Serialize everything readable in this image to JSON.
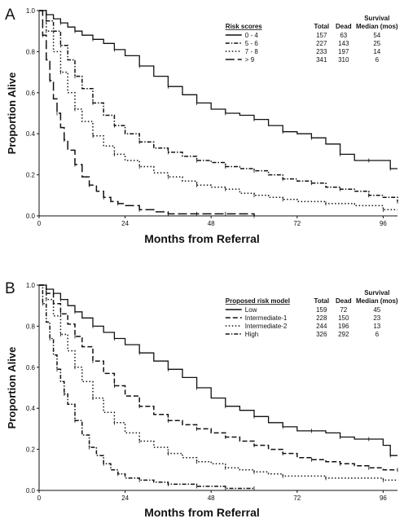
{
  "chart_data": [
    {
      "type": "line",
      "panel_label": "A",
      "xlabel": "Months from Referral",
      "ylabel": "Proportion Alive",
      "xlim": [
        0,
        100
      ],
      "ylim": [
        0,
        1.0
      ],
      "xticks": [
        0,
        24,
        48,
        72,
        96
      ],
      "yticks": [
        0.0,
        0.2,
        0.4,
        0.6,
        0.8,
        1.0
      ],
      "xtick_labels": [
        "0",
        "24",
        "48",
        "72",
        "96"
      ],
      "ytick_labels": [
        "0.0",
        "0.2",
        "0.4",
        "0.6",
        "0.8",
        "1.0"
      ],
      "legend_position": "top-right",
      "legend": {
        "title": "Risk scores",
        "columns": [
          "Total",
          "Dead",
          "Survival Median (mos)"
        ],
        "column_headers_top": [
          "",
          "",
          "Survival"
        ],
        "column_headers_bottom": [
          "Total",
          "Dead",
          "Median (mos)"
        ],
        "rows": [
          {
            "label": "0 - 4",
            "total": "157",
            "dead": "63",
            "median": "54"
          },
          {
            "label": "5 - 6",
            "total": "227",
            "dead": "143",
            "median": "25"
          },
          {
            "label": "7 - 8",
            "total": "233",
            "dead": "197",
            "median": "14"
          },
          {
            "label": "> 9",
            "total": "341",
            "dead": "310",
            "median": "6"
          }
        ]
      },
      "series": [
        {
          "name": "0 - 4",
          "style": "solid",
          "x": [
            0,
            2,
            4,
            6,
            8,
            10,
            12,
            15,
            18,
            21,
            24,
            28,
            32,
            36,
            40,
            44,
            48,
            52,
            56,
            60,
            64,
            68,
            72,
            76,
            80,
            84,
            88,
            92,
            96,
            98,
            100
          ],
          "y": [
            1.0,
            0.98,
            0.96,
            0.94,
            0.92,
            0.9,
            0.88,
            0.86,
            0.84,
            0.81,
            0.78,
            0.73,
            0.68,
            0.63,
            0.59,
            0.55,
            0.52,
            0.5,
            0.49,
            0.47,
            0.44,
            0.41,
            0.4,
            0.38,
            0.35,
            0.3,
            0.27,
            0.27,
            0.27,
            0.23,
            0.23
          ]
        },
        {
          "name": "5 - 6",
          "style": "dash-dot",
          "x": [
            0,
            2,
            4,
            6,
            8,
            10,
            12,
            15,
            18,
            21,
            24,
            28,
            32,
            36,
            40,
            44,
            48,
            52,
            56,
            60,
            64,
            68,
            72,
            76,
            80,
            84,
            88,
            92,
            96,
            100
          ],
          "y": [
            1.0,
            0.95,
            0.9,
            0.83,
            0.76,
            0.68,
            0.62,
            0.55,
            0.49,
            0.44,
            0.4,
            0.36,
            0.33,
            0.31,
            0.29,
            0.27,
            0.26,
            0.24,
            0.23,
            0.22,
            0.2,
            0.18,
            0.17,
            0.16,
            0.14,
            0.13,
            0.12,
            0.1,
            0.09,
            0.07
          ]
        },
        {
          "name": "7 - 8",
          "style": "dotted",
          "x": [
            0,
            2,
            4,
            6,
            8,
            10,
            12,
            15,
            18,
            21,
            24,
            28,
            32,
            36,
            40,
            44,
            48,
            52,
            56,
            60,
            64,
            68,
            72,
            80,
            88,
            96,
            100
          ],
          "y": [
            1.0,
            0.9,
            0.8,
            0.7,
            0.6,
            0.52,
            0.46,
            0.39,
            0.34,
            0.3,
            0.27,
            0.24,
            0.21,
            0.19,
            0.17,
            0.15,
            0.14,
            0.13,
            0.11,
            0.1,
            0.09,
            0.08,
            0.07,
            0.06,
            0.05,
            0.03,
            0.03
          ]
        },
        {
          "name": "> 9",
          "style": "long-dash",
          "x": [
            0,
            1,
            2,
            3,
            4,
            5,
            6,
            7,
            8,
            10,
            12,
            14,
            16,
            18,
            20,
            22,
            24,
            28,
            32,
            36,
            40,
            44,
            48,
            52,
            56,
            60
          ],
          "y": [
            1.0,
            0.88,
            0.76,
            0.66,
            0.57,
            0.5,
            0.43,
            0.37,
            0.32,
            0.25,
            0.19,
            0.15,
            0.12,
            0.09,
            0.07,
            0.06,
            0.05,
            0.03,
            0.02,
            0.01,
            0.01,
            0.01,
            0.01,
            0.01,
            0.01,
            0.0
          ]
        }
      ]
    },
    {
      "type": "line",
      "panel_label": "B",
      "xlabel": "Months from Referral",
      "ylabel": "Proportion Alive",
      "xlim": [
        0,
        100
      ],
      "ylim": [
        0,
        1.0
      ],
      "xticks": [
        0,
        24,
        48,
        72,
        96
      ],
      "yticks": [
        0.0,
        0.2,
        0.4,
        0.6,
        0.8,
        1.0
      ],
      "xtick_labels": [
        "0",
        "24",
        "48",
        "72",
        "96"
      ],
      "ytick_labels": [
        "0.0",
        "0.2",
        "0.4",
        "0.6",
        "0.8",
        "1.0"
      ],
      "legend_position": "top-right",
      "legend": {
        "title": "Proposed risk model",
        "columns": [
          "Total",
          "Dead",
          "Survival Median (mos)"
        ],
        "column_headers_top": [
          "",
          "",
          "Survival"
        ],
        "column_headers_bottom": [
          "Total",
          "Dead",
          "Median (mos)"
        ],
        "rows": [
          {
            "label": "Low",
            "total": "159",
            "dead": "72",
            "median": "45"
          },
          {
            "label": "Intermediate-1",
            "total": "228",
            "dead": "150",
            "median": "23"
          },
          {
            "label": "Intermediate-2",
            "total": "244",
            "dead": "196",
            "median": "13"
          },
          {
            "label": "High",
            "total": "326",
            "dead": "292",
            "median": "6"
          }
        ]
      },
      "series": [
        {
          "name": "Low",
          "style": "solid",
          "x": [
            0,
            2,
            4,
            6,
            8,
            10,
            12,
            15,
            18,
            21,
            24,
            28,
            32,
            36,
            40,
            44,
            48,
            52,
            56,
            60,
            64,
            68,
            72,
            76,
            80,
            84,
            88,
            92,
            96,
            98,
            100
          ],
          "y": [
            1.0,
            0.98,
            0.96,
            0.93,
            0.9,
            0.87,
            0.84,
            0.8,
            0.77,
            0.74,
            0.71,
            0.67,
            0.63,
            0.59,
            0.55,
            0.5,
            0.45,
            0.41,
            0.39,
            0.36,
            0.33,
            0.31,
            0.29,
            0.29,
            0.28,
            0.26,
            0.25,
            0.25,
            0.22,
            0.17,
            0.17
          ]
        },
        {
          "name": "Intermediate-1",
          "style": "dashed",
          "x": [
            0,
            2,
            4,
            6,
            8,
            10,
            12,
            15,
            18,
            21,
            24,
            28,
            32,
            36,
            40,
            44,
            48,
            52,
            56,
            60,
            64,
            68,
            72,
            76,
            80,
            84,
            88,
            92,
            96,
            100
          ],
          "y": [
            1.0,
            0.96,
            0.91,
            0.86,
            0.81,
            0.75,
            0.7,
            0.63,
            0.57,
            0.51,
            0.46,
            0.41,
            0.37,
            0.34,
            0.32,
            0.3,
            0.28,
            0.26,
            0.24,
            0.22,
            0.2,
            0.18,
            0.16,
            0.15,
            0.14,
            0.13,
            0.12,
            0.11,
            0.1,
            0.1
          ]
        },
        {
          "name": "Intermediate-2",
          "style": "dotted",
          "x": [
            0,
            2,
            4,
            6,
            8,
            10,
            12,
            15,
            18,
            21,
            24,
            28,
            32,
            36,
            40,
            44,
            48,
            52,
            56,
            60,
            64,
            68,
            72,
            80,
            88,
            96,
            100
          ],
          "y": [
            1.0,
            0.93,
            0.85,
            0.76,
            0.68,
            0.6,
            0.53,
            0.45,
            0.38,
            0.33,
            0.28,
            0.24,
            0.21,
            0.18,
            0.16,
            0.14,
            0.13,
            0.11,
            0.1,
            0.09,
            0.08,
            0.07,
            0.07,
            0.06,
            0.06,
            0.05,
            0.05
          ]
        },
        {
          "name": "High",
          "style": "dash-dot",
          "x": [
            0,
            1,
            2,
            3,
            4,
            5,
            6,
            7,
            8,
            10,
            12,
            14,
            16,
            18,
            20,
            22,
            24,
            28,
            32,
            36,
            40,
            44,
            48,
            52,
            56,
            60
          ],
          "y": [
            1.0,
            0.91,
            0.82,
            0.74,
            0.66,
            0.59,
            0.53,
            0.47,
            0.42,
            0.34,
            0.27,
            0.21,
            0.17,
            0.13,
            0.1,
            0.08,
            0.06,
            0.05,
            0.04,
            0.03,
            0.03,
            0.02,
            0.02,
            0.01,
            0.01,
            0.01
          ]
        }
      ]
    }
  ]
}
